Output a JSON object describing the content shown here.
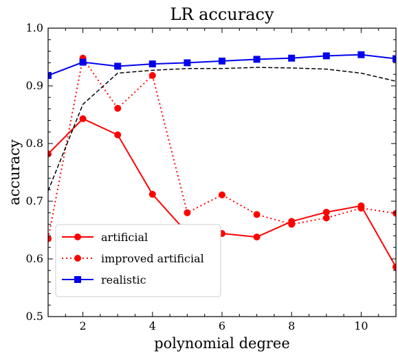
{
  "chart_data": {
    "type": "line",
    "title": "LR accuracy",
    "xlabel": "polynomial degree",
    "ylabel": "accuracy",
    "xlim": [
      1,
      11
    ],
    "ylim": [
      0.5,
      1.0
    ],
    "x_ticks": [
      2,
      4,
      6,
      8,
      10
    ],
    "y_ticks": [
      0.5,
      0.6,
      0.7,
      0.8,
      0.9,
      1.0
    ],
    "y_tick_labels": [
      "0.5",
      "0.6",
      "0.7",
      "0.8",
      "0.9",
      "1.0"
    ],
    "grid": false,
    "legend_position": "lower-left",
    "x": [
      1,
      2,
      3,
      4,
      5,
      6,
      7,
      8,
      9,
      10,
      11
    ],
    "series": [
      {
        "name": "artificial",
        "color": "#ff0000",
        "line_style": "solid",
        "marker": "circle",
        "values": [
          0.782,
          0.843,
          0.815,
          0.712,
          0.645,
          0.644,
          0.638,
          0.665,
          0.681,
          0.692,
          0.586
        ]
      },
      {
        "name": "improved artificial",
        "color": "#ff0000",
        "line_style": "dotted",
        "marker": "circle",
        "values": [
          0.635,
          0.948,
          0.861,
          0.918,
          0.68,
          0.711,
          0.677,
          0.66,
          0.671,
          0.688,
          0.679
        ]
      },
      {
        "name": "realistic",
        "color": "#0000ee",
        "line_style": "solid",
        "marker": "square",
        "values": [
          0.918,
          0.941,
          0.934,
          0.938,
          0.94,
          0.943,
          0.946,
          0.948,
          0.952,
          0.954,
          0.947
        ]
      },
      {
        "name": "",
        "color": "#000000",
        "line_style": "dashed",
        "marker": "none",
        "values": [
          0.718,
          0.868,
          0.922,
          0.927,
          0.93,
          0.93,
          0.932,
          0.931,
          0.929,
          0.922,
          0.908
        ]
      }
    ]
  }
}
